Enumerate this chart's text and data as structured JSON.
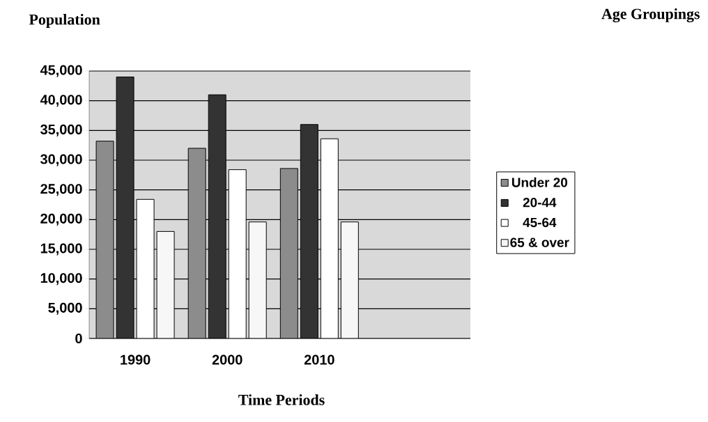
{
  "chart_data": {
    "type": "bar",
    "ylabel": "Population",
    "legend_title": "Age Groupings",
    "xlabel": "Time Periods",
    "categories": [
      "1990",
      "2000",
      "2010"
    ],
    "series": [
      {
        "name": "Under 20",
        "color": "#8c8c8c",
        "values": [
          33200,
          32000,
          28600
        ]
      },
      {
        "name": "20-44",
        "color": "#333333",
        "values": [
          44000,
          41000,
          36000
        ]
      },
      {
        "name": "45-64",
        "color": "#ffffff",
        "values": [
          23400,
          28400,
          33600
        ]
      },
      {
        "name": "65 & over",
        "color": "#f7f7f7",
        "values": [
          18000,
          19600,
          19600
        ]
      }
    ],
    "ylim": [
      0,
      45000
    ],
    "yticks": [
      {
        "value": 0,
        "label": "0"
      },
      {
        "value": 5000,
        "label": "5,000"
      },
      {
        "value": 10000,
        "label": "10,000"
      },
      {
        "value": 15000,
        "label": "15,000"
      },
      {
        "value": 20000,
        "label": "20,000"
      },
      {
        "value": 25000,
        "label": "25,000"
      },
      {
        "value": 30000,
        "label": "30,000"
      },
      {
        "value": 35000,
        "label": "35,000"
      },
      {
        "value": 40000,
        "label": "40,000"
      },
      {
        "value": 45000,
        "label": "45,000"
      }
    ],
    "grid": "y",
    "legend": "right"
  }
}
